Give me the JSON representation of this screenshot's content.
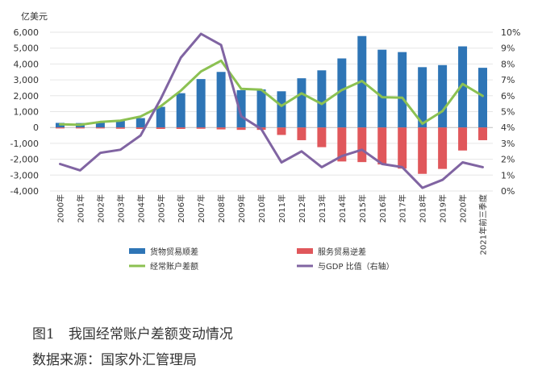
{
  "chart_data": {
    "type": "bar",
    "left_unit": "亿美元",
    "categories": [
      "2000年",
      "2001年",
      "2002年",
      "2003年",
      "2004年",
      "2005年",
      "2006年",
      "2007年",
      "2008年",
      "2009年",
      "2010年",
      "2011年",
      "2012年",
      "2013年",
      "2014年",
      "2015年",
      "2016年",
      "2017年",
      "2018年",
      "2019年",
      "2020年",
      "2021年前三季度"
    ],
    "y_left": {
      "min": -4000,
      "max": 6000,
      "ticks": [
        "-4,000",
        "-3,000",
        "-2,000",
        "-1,000",
        "0",
        "1,000",
        "2,000",
        "3,000",
        "4,000",
        "5,000",
        "6,000"
      ]
    },
    "y_right": {
      "min": 0,
      "max": 10,
      "ticks": [
        "0%",
        "1%",
        "2%",
        "3%",
        "4%",
        "5%",
        "6%",
        "7%",
        "8%",
        "9%",
        "10%"
      ]
    },
    "series": [
      {
        "name": "货物贸易顺差",
        "kind": "bar",
        "axis": "left",
        "color": "#2e75b6",
        "values": [
          290,
          280,
          380,
          450,
          590,
          1300,
          2160,
          3050,
          3500,
          2350,
          2400,
          2280,
          3100,
          3600,
          4350,
          5760,
          4900,
          4750,
          3800,
          3930,
          5110,
          3760
        ]
      },
      {
        "name": "服务贸易逆差",
        "kind": "bar",
        "axis": "left",
        "color": "#e0575b",
        "values": [
          -60,
          -60,
          -60,
          -80,
          -90,
          -90,
          -90,
          -80,
          -120,
          -150,
          -150,
          -470,
          -800,
          -1240,
          -2140,
          -2180,
          -2330,
          -2590,
          -2920,
          -2610,
          -1450,
          -800
        ]
      },
      {
        "name": "经常账户差额",
        "kind": "line",
        "axis": "left",
        "color": "#8cc152",
        "values": [
          200,
          170,
          350,
          430,
          690,
          1340,
          2320,
          3530,
          4210,
          2430,
          2380,
          1360,
          2150,
          1480,
          2360,
          2930,
          1910,
          1880,
          240,
          1030,
          2740,
          1990
        ]
      },
      {
        "name": "与GDP 比值（右轴）",
        "kind": "line",
        "axis": "right",
        "color": "#8064a2",
        "values": [
          1.7,
          1.3,
          2.4,
          2.6,
          3.5,
          5.8,
          8.4,
          9.9,
          9.2,
          4.7,
          3.9,
          1.8,
          2.5,
          1.5,
          2.2,
          2.6,
          1.7,
          1.5,
          0.2,
          0.7,
          1.8,
          1.5
        ]
      }
    ]
  },
  "figure_title": "图1　我国经常账户差额变动情况",
  "source_note": "数据来源：国家外汇管理局"
}
